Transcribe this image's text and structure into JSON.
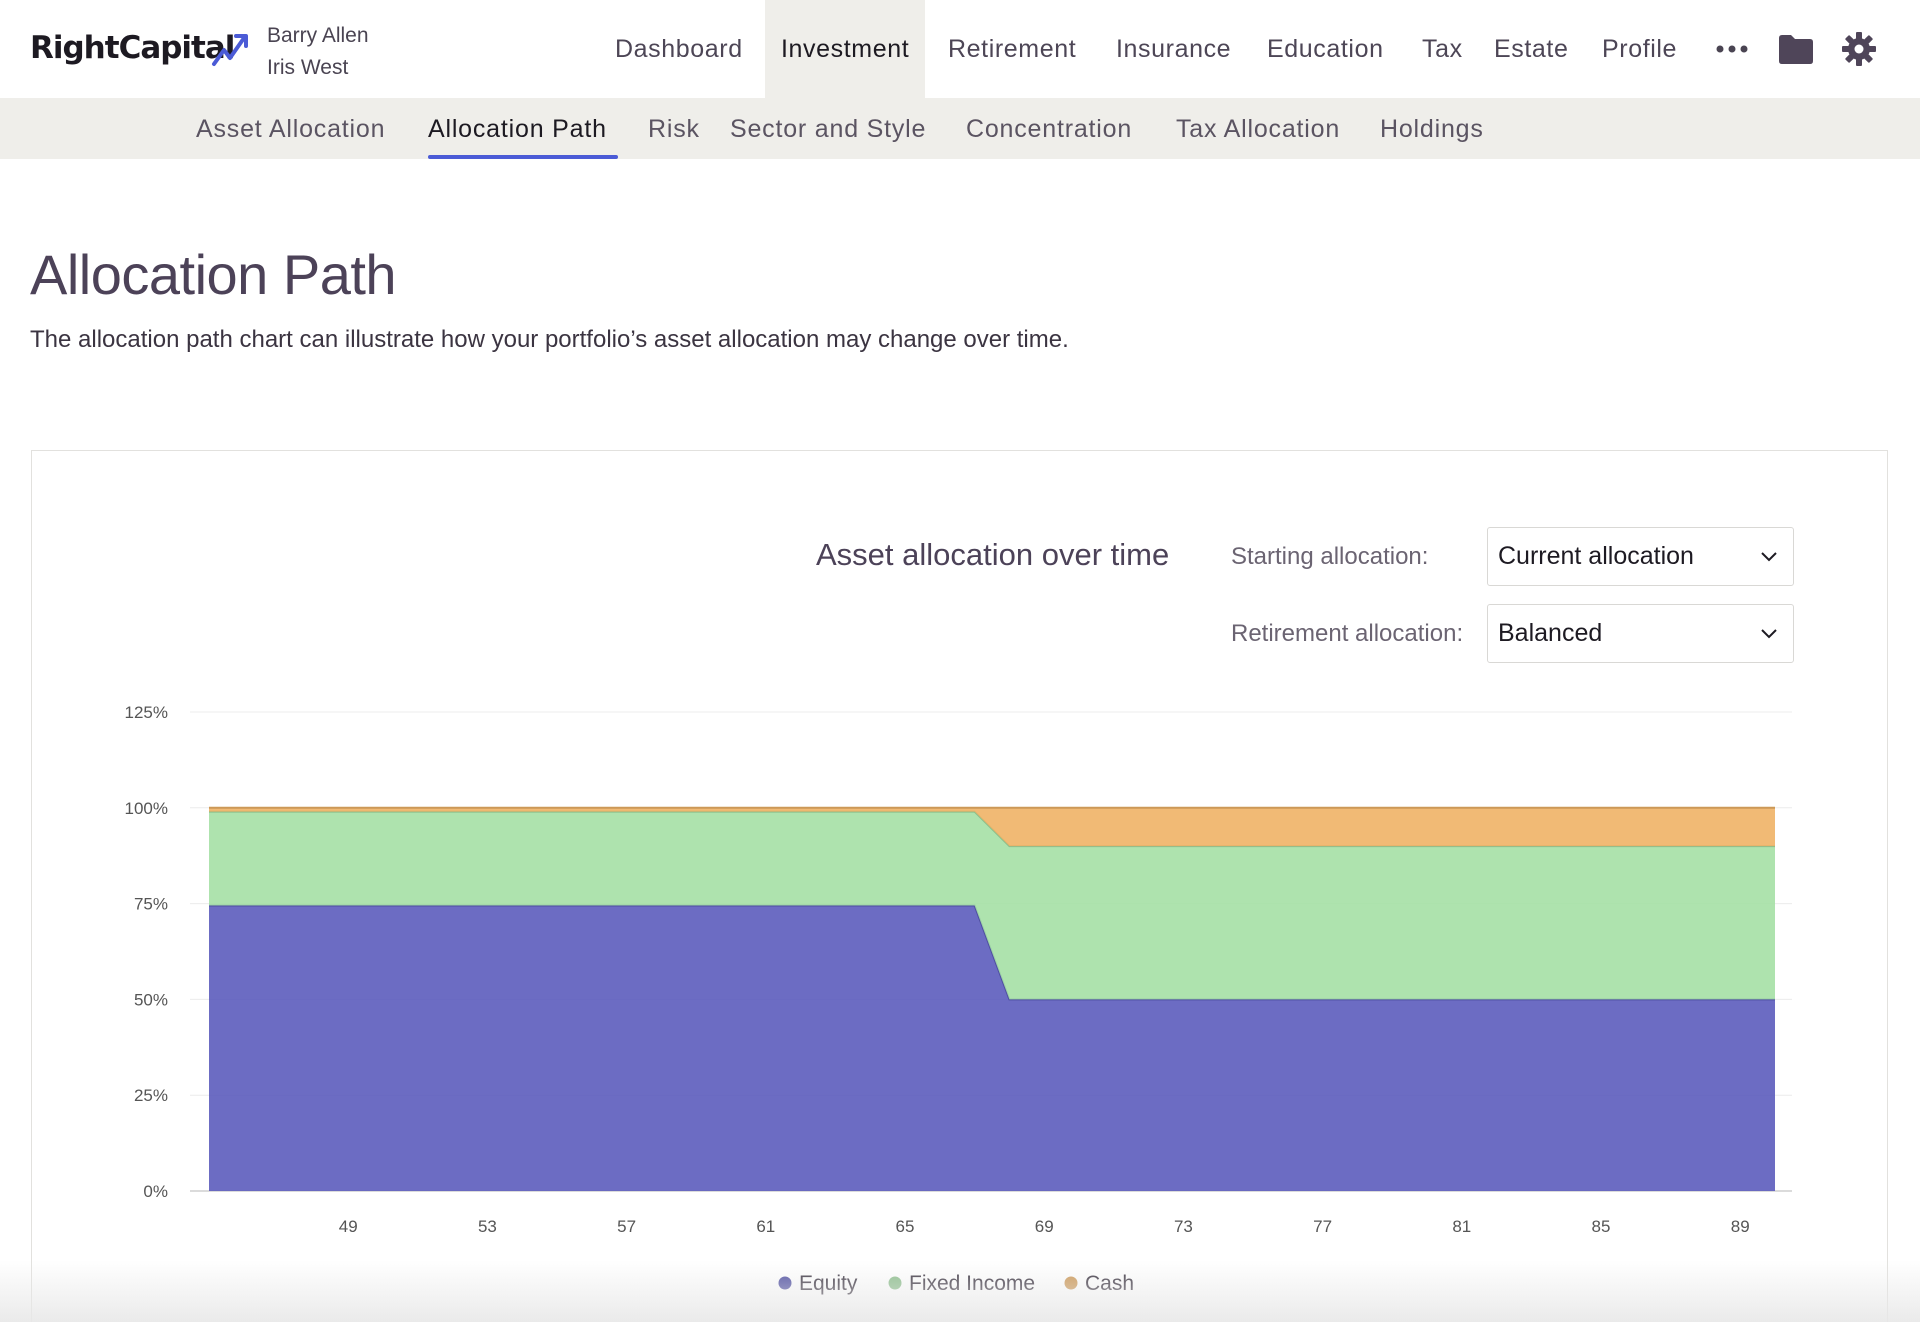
{
  "brand": {
    "name": "RightCapital",
    "accent": "#4b5bd6"
  },
  "clients": [
    "Barry Allen",
    "Iris West"
  ],
  "nav": {
    "items": [
      "Dashboard",
      "Investment",
      "Retirement",
      "Insurance",
      "Education",
      "Tax",
      "Estate",
      "Profile"
    ],
    "active": "Investment",
    "more_icon": "more-dots-icon",
    "folder_icon": "folder-icon",
    "settings_icon": "gear-icon"
  },
  "subnav": {
    "items": [
      "Asset Allocation",
      "Allocation Path",
      "Risk",
      "Sector and Style",
      "Concentration",
      "Tax Allocation",
      "Holdings"
    ],
    "active": "Allocation Path"
  },
  "page": {
    "title": "Allocation Path",
    "description": "The allocation path chart can illustrate how your portfolio’s asset allocation may change over time."
  },
  "controls": {
    "starting_label": "Starting allocation:",
    "starting_value": "Current allocation",
    "retirement_label": "Retirement allocation:",
    "retirement_value": "Balanced"
  },
  "chart_data": {
    "type": "area",
    "stacked": true,
    "title": "Asset allocation over time",
    "xlabel": "",
    "ylabel": "",
    "x_ticks": [
      49,
      53,
      57,
      61,
      65,
      69,
      73,
      77,
      81,
      85,
      89
    ],
    "xlim": [
      45,
      90
    ],
    "y_ticks": [
      "0%",
      "25%",
      "50%",
      "75%",
      "100%",
      "125%"
    ],
    "ylim": [
      0,
      125
    ],
    "grid": true,
    "legend_position": "bottom",
    "x": [
      45,
      67,
      68,
      90
    ],
    "series": [
      {
        "name": "Equity",
        "color": "#5c5cbd",
        "values": [
          74.5,
          74.5,
          50,
          50
        ]
      },
      {
        "name": "Fixed Income",
        "color": "#a5e0a5",
        "values": [
          24.5,
          24.5,
          40,
          40
        ]
      },
      {
        "name": "Cash",
        "color": "#f0b366",
        "values": [
          1,
          1,
          10,
          10
        ]
      }
    ]
  }
}
